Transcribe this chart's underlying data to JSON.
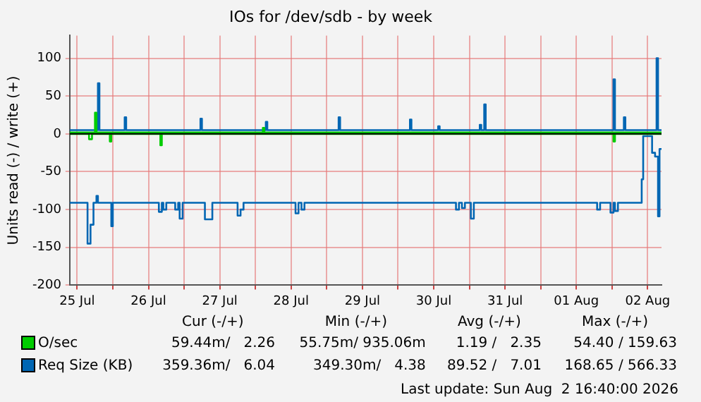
{
  "chart_data": {
    "type": "step",
    "title": "IOs for /dev/sdb - by week",
    "ylabel": "Units read (-) / write (+)",
    "xlim": [
      "2026-07-25T09:30",
      "2026-08-02T16:40"
    ],
    "xticks": [
      {
        "value": "2026-07-25T12:00",
        "label": "25 Jul"
      },
      {
        "value": "2026-07-26T00:00",
        "label": null
      },
      {
        "value": "2026-07-26T12:00",
        "label": "26 Jul"
      },
      {
        "value": "2026-07-27T00:00",
        "label": null
      },
      {
        "value": "2026-07-27T12:00",
        "label": "27 Jul"
      },
      {
        "value": "2026-07-28T00:00",
        "label": null
      },
      {
        "value": "2026-07-28T12:00",
        "label": "28 Jul"
      },
      {
        "value": "2026-07-29T00:00",
        "label": null
      },
      {
        "value": "2026-07-29T12:00",
        "label": "29 Jul"
      },
      {
        "value": "2026-07-30T00:00",
        "label": null
      },
      {
        "value": "2026-07-30T12:00",
        "label": "30 Jul"
      },
      {
        "value": "2026-07-31T00:00",
        "label": null
      },
      {
        "value": "2026-07-31T12:00",
        "label": "31 Jul"
      },
      {
        "value": "2026-08-01T00:00",
        "label": null
      },
      {
        "value": "2026-08-01T12:00",
        "label": "01 Aug"
      },
      {
        "value": "2026-08-02T00:00",
        "label": null
      },
      {
        "value": "2026-08-02T12:00",
        "label": "02 Aug"
      }
    ],
    "ylim": [
      -200,
      130
    ],
    "yticks": [
      -200,
      -150,
      -100,
      -50,
      0,
      50,
      100
    ],
    "grid": true,
    "legend": "bottom",
    "ref_lines": [
      {
        "axis": "y",
        "value": 0,
        "label": null,
        "color": "#000000"
      }
    ],
    "series": [
      {
        "color": "#00cc00",
        "x": [
          "2026-07-25T09:30",
          "2026-07-25T16:00",
          "2026-07-25T17:00",
          "2026-07-25T23:00",
          "2026-07-25T23:30",
          "2026-07-26T16:00",
          "2026-07-26T16:30",
          "2026-08-02T00:30",
          "2026-08-02T01:00",
          "2026-08-02T16:40"
        ],
        "values": [
          0,
          -7,
          0,
          -10,
          0,
          -15,
          0,
          -10,
          0,
          0
        ]
      },
      {
        "name": "O/sec",
        "color": "#00cc00",
        "x": [
          "2026-07-25T09:30",
          "2026-07-25T18:00",
          "2026-07-25T18:30",
          "2026-07-28T02:30",
          "2026-07-28T03:00",
          "2026-08-02T16:40"
        ],
        "values": [
          2,
          28,
          2,
          8,
          2,
          2
        ]
      },
      {
        "color": "#0066b3",
        "x": [
          "2026-07-25T09:30",
          "2026-07-25T15:30",
          "2026-07-25T16:30",
          "2026-07-25T17:30",
          "2026-07-25T18:30",
          "2026-07-25T19:00",
          "2026-07-25T23:30",
          "2026-07-26T00:00",
          "2026-07-26T15:30",
          "2026-07-26T16:30",
          "2026-07-26T17:00",
          "2026-07-26T18:00",
          "2026-07-26T21:00",
          "2026-07-26T22:00",
          "2026-07-26T22:30",
          "2026-07-26T23:30",
          "2026-07-27T07:00",
          "2026-07-27T09:30",
          "2026-07-27T18:00",
          "2026-07-27T19:00",
          "2026-07-27T20:00",
          "2026-07-28T13:30",
          "2026-07-28T14:30",
          "2026-07-28T15:30",
          "2026-07-28T16:30",
          "2026-07-30T19:30",
          "2026-07-30T20:30",
          "2026-07-30T21:30",
          "2026-07-30T22:30",
          "2026-07-31T00:30",
          "2026-07-31T01:30",
          "2026-08-01T19:00",
          "2026-08-01T20:00",
          "2026-08-01T23:30",
          "2026-08-02T00:30",
          "2026-08-02T01:00",
          "2026-08-02T02:00",
          "2026-08-02T10:00",
          "2026-08-02T10:30",
          "2026-08-02T13:30",
          "2026-08-02T14:30",
          "2026-08-02T15:30",
          "2026-08-02T16:00",
          "2026-08-02T16:40"
        ],
        "values": [
          -91,
          -145,
          -120,
          -91,
          -82,
          -91,
          -122,
          -91,
          -103,
          -91,
          -100,
          -91,
          -100,
          -91,
          -112,
          -91,
          -113,
          -91,
          -108,
          -100,
          -91,
          -105,
          -91,
          -100,
          -91,
          -100,
          -91,
          -98,
          -91,
          -112,
          -91,
          -100,
          -91,
          -104,
          -91,
          -102,
          -91,
          -60,
          -3,
          -25,
          -30,
          -109,
          -20,
          -20
        ]
      },
      {
        "name": "Req Size (KB)",
        "color": "#0066b3",
        "x": [
          "2026-07-25T09:30",
          "2026-07-25T19:00",
          "2026-07-25T19:30",
          "2026-07-26T04:00",
          "2026-07-26T04:30",
          "2026-07-27T05:30",
          "2026-07-27T06:00",
          "2026-07-28T03:30",
          "2026-07-28T04:00",
          "2026-07-29T04:00",
          "2026-07-29T04:30",
          "2026-07-30T04:00",
          "2026-07-30T04:30",
          "2026-07-30T13:30",
          "2026-07-30T14:00",
          "2026-07-31T03:30",
          "2026-07-31T04:00",
          "2026-07-31T05:00",
          "2026-07-31T05:30",
          "2026-08-02T00:30",
          "2026-08-02T01:00",
          "2026-08-02T04:00",
          "2026-08-02T04:30",
          "2026-08-02T15:00",
          "2026-08-02T15:30",
          "2026-08-02T16:40"
        ],
        "values": [
          5,
          67,
          5,
          22,
          5,
          20,
          5,
          16,
          5,
          22,
          5,
          19,
          5,
          10,
          5,
          12,
          5,
          39,
          5,
          72,
          5,
          22,
          5,
          100,
          5,
          5
        ]
      }
    ],
    "annotations": [
      "Cur (-/+)",
      "Min (-/+)",
      "Avg (-/+)",
      "Max (-/+)",
      "59.44m/   2.26",
      "55.75m/ 935.06m",
      "1.19 /   2.35",
      "54.40 / 159.63",
      "359.36m/   6.04",
      "349.30m/   4.38",
      "89.52 /   7.01",
      "168.65 / 566.33",
      "Last update: Sun Aug  2 16:40:00 2026"
    ]
  }
}
